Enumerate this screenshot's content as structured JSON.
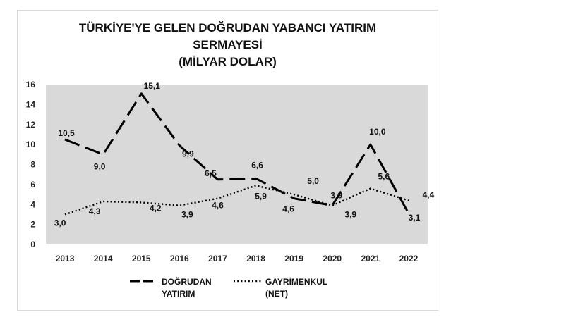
{
  "chart_data": {
    "type": "line",
    "title_lines": [
      "TÜRKİYE'YE GELEN DOĞRUDAN YABANCI YATIRIM",
      "SERMAYESİ",
      "(MİLYAR DOLAR)"
    ],
    "categories": [
      "2013",
      "2014",
      "2015",
      "2016",
      "2017",
      "2018",
      "2019",
      "2020",
      "2021",
      "2022"
    ],
    "ylim": [
      0,
      16
    ],
    "yticks": [
      "0",
      "2",
      "4",
      "6",
      "8",
      "10",
      "12",
      "14",
      "16"
    ],
    "grid": false,
    "plot_background": "#d9d9d9",
    "legend_position": "bottom",
    "series": [
      {
        "name_lines": [
          "DOĞRUDAN",
          "YATIRIM"
        ],
        "style": "long-dash",
        "color": "#000000",
        "values": [
          10.5,
          9.0,
          15.1,
          9.9,
          6.5,
          6.6,
          4.6,
          3.9,
          10.0,
          3.1
        ],
        "labels": [
          "10,5",
          "9,0",
          "15,1",
          "9,9",
          "6,5",
          "6,6",
          "4,6",
          "3,9",
          "10,0",
          "3,1"
        ]
      },
      {
        "name_lines": [
          "GAYRİMENKUL",
          "(NET)"
        ],
        "style": "dotted",
        "color": "#000000",
        "values": [
          3.0,
          4.3,
          4.2,
          3.9,
          4.6,
          5.9,
          5.0,
          3.9,
          5.6,
          4.4
        ],
        "labels": [
          "3,0",
          "4,3",
          "4,2",
          "3,9",
          "4,6",
          "5,9",
          "5,0",
          "3,9",
          "5,6",
          "4,4"
        ]
      }
    ]
  }
}
